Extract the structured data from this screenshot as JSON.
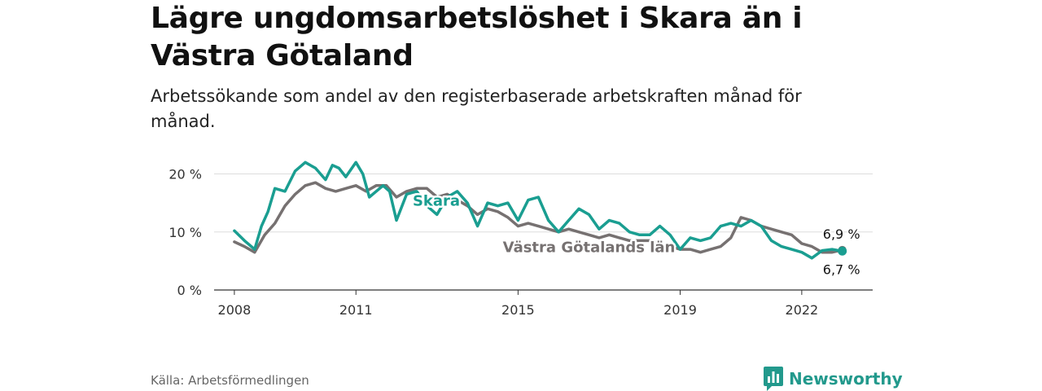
{
  "title": "Lägre ungdomsarbetslöshet i Skara än i Västra Götaland",
  "subtitle": "Arbetssökande som andel av den registerbaserade arbetskraften månad för månad.",
  "source": "Källa: Arbetsförmedlingen",
  "brand": "Newsworthy",
  "colors": {
    "skara": "#1a9e91",
    "vg": "#767171",
    "grid": "#dddddd",
    "axis": "#333333"
  },
  "chart_data": {
    "type": "line",
    "title": "Lägre ungdomsarbetslöshet i Skara än i Västra Götaland",
    "xlabel": "",
    "ylabel": "",
    "ylim": [
      0,
      24
    ],
    "xlim": [
      2007.5,
      2023.75
    ],
    "y_ticks": [
      0,
      10,
      20
    ],
    "y_tick_labels": [
      "0 %",
      "10 %",
      "20 %"
    ],
    "x_ticks": [
      2008,
      2011,
      2015,
      2019,
      2022
    ],
    "x_tick_labels": [
      "2008",
      "2011",
      "2015",
      "2019",
      "2022"
    ],
    "grid": true,
    "series": [
      {
        "name": "Skara",
        "label": "Skara",
        "x": [
          2008.0,
          2008.25,
          2008.5,
          2008.67,
          2008.83,
          2009.0,
          2009.25,
          2009.5,
          2009.75,
          2010.0,
          2010.25,
          2010.42,
          2010.58,
          2010.75,
          2011.0,
          2011.17,
          2011.33,
          2011.5,
          2011.67,
          2011.83,
          2012.0,
          2012.25,
          2012.5,
          2012.75,
          2013.0,
          2013.25,
          2013.5,
          2013.75,
          2014.0,
          2014.25,
          2014.5,
          2014.75,
          2015.0,
          2015.25,
          2015.5,
          2015.75,
          2016.0,
          2016.25,
          2016.5,
          2016.75,
          2017.0,
          2017.25,
          2017.5,
          2017.75,
          2018.0,
          2018.25,
          2018.5,
          2018.75,
          2019.0,
          2019.25,
          2019.5,
          2019.75,
          2020.0,
          2020.25,
          2020.5,
          2020.75,
          2021.0,
          2021.25,
          2021.5,
          2021.75,
          2022.0,
          2022.25,
          2022.5,
          2022.75,
          2023.0
        ],
        "values": [
          10.2,
          8.5,
          7.0,
          11.0,
          13.5,
          17.5,
          17.0,
          20.5,
          22.0,
          21.0,
          19.0,
          21.5,
          21.0,
          19.5,
          22.0,
          20.0,
          16.0,
          17.0,
          18.0,
          17.0,
          12.0,
          16.5,
          17.0,
          14.5,
          13.0,
          16.0,
          17.0,
          15.0,
          11.0,
          15.0,
          14.5,
          15.0,
          12.0,
          15.5,
          16.0,
          12.0,
          10.0,
          12.0,
          14.0,
          13.0,
          10.5,
          12.0,
          11.5,
          10.0,
          9.5,
          9.5,
          11.0,
          9.5,
          7.0,
          9.0,
          8.5,
          9.0,
          11.0,
          11.5,
          11.0,
          12.0,
          11.0,
          8.5,
          7.5,
          7.0,
          6.5,
          5.5,
          6.8,
          7.0,
          6.7
        ]
      },
      {
        "name": "Västra Götalands län",
        "label": "Västra Götalands län",
        "x": [
          2008.0,
          2008.25,
          2008.5,
          2008.75,
          2009.0,
          2009.25,
          2009.5,
          2009.75,
          2010.0,
          2010.25,
          2010.5,
          2010.75,
          2011.0,
          2011.25,
          2011.5,
          2011.75,
          2012.0,
          2012.25,
          2012.5,
          2012.75,
          2013.0,
          2013.25,
          2013.5,
          2013.75,
          2014.0,
          2014.25,
          2014.5,
          2014.75,
          2015.0,
          2015.25,
          2015.5,
          2015.75,
          2016.0,
          2016.25,
          2016.5,
          2016.75,
          2017.0,
          2017.25,
          2017.5,
          2017.75,
          2018.0,
          2018.25,
          2018.5,
          2018.75,
          2019.0,
          2019.25,
          2019.5,
          2019.75,
          2020.0,
          2020.25,
          2020.5,
          2020.75,
          2021.0,
          2021.25,
          2021.5,
          2021.75,
          2022.0,
          2022.25,
          2022.5,
          2022.75,
          2023.0
        ],
        "values": [
          8.3,
          7.5,
          6.5,
          9.5,
          11.5,
          14.5,
          16.5,
          18.0,
          18.5,
          17.5,
          17.0,
          17.5,
          18.0,
          17.0,
          18.0,
          18.0,
          16.0,
          17.0,
          17.5,
          17.5,
          16.0,
          16.5,
          15.5,
          14.5,
          13.0,
          14.0,
          13.5,
          12.5,
          11.0,
          11.5,
          11.0,
          10.5,
          10.0,
          10.5,
          10.0,
          9.5,
          9.0,
          9.5,
          9.0,
          8.5,
          8.5,
          8.5,
          8.0,
          7.5,
          7.0,
          7.0,
          6.5,
          7.0,
          7.5,
          9.0,
          12.5,
          12.0,
          11.0,
          10.5,
          10.0,
          9.5,
          8.0,
          7.5,
          6.5,
          6.5,
          6.9
        ]
      }
    ],
    "end_labels": [
      "6,9 %",
      "6,7 %"
    ]
  }
}
